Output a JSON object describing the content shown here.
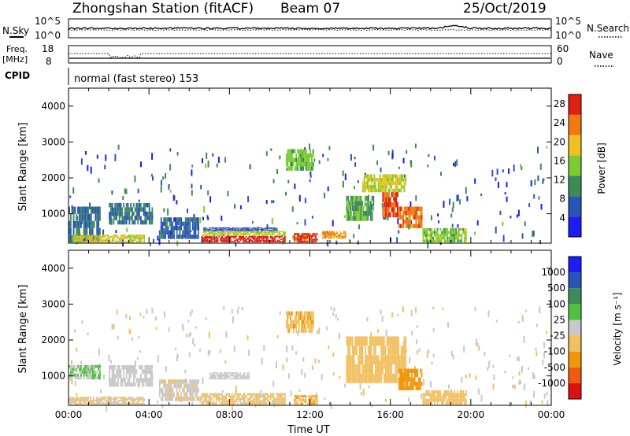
{
  "header": {
    "station": "Zhongshan Station (fitACF)",
    "beam": "Beam 07",
    "date": "25/Oct/2019"
  },
  "top_panels": {
    "nsky_label": "N.Sky",
    "nsearch_label": "N.Search",
    "freq_label_1": "Freq.",
    "freq_label_2": "[MHz]",
    "nave_label": "Nave",
    "cpid_label": "CPID",
    "cpid_text": "normal (fast stereo) 153",
    "noise_ticks_left": [
      "10^5",
      "10^0"
    ],
    "noise_ticks_right": [
      "10^5",
      "10^0"
    ],
    "freq_ticks": [
      "18",
      "8"
    ],
    "nave_ticks": [
      "60",
      "0"
    ]
  },
  "chart_data": [
    {
      "type": "heatmap",
      "title": "",
      "xlabel": "",
      "ylabel": "Slant Range [km]",
      "ylim": [
        180,
        4500
      ],
      "xlim": [
        0,
        24
      ],
      "y_ticks": [
        "1000",
        "2000",
        "3000",
        "4000"
      ],
      "colorbar": {
        "label": "Power [dB]",
        "ticks": [
          "4",
          "8",
          "12",
          "16",
          "20",
          "24",
          "28"
        ],
        "range": [
          0,
          30
        ],
        "colors": [
          "#1c1cf5",
          "#2a55b8",
          "#3d8a5a",
          "#7ccc30",
          "#f0c020",
          "#f07a10",
          "#e02010"
        ]
      },
      "regions": [
        {
          "t0": 6.6,
          "t1": 10.8,
          "r0": 200,
          "r1": 380,
          "level": 29
        },
        {
          "t0": 6.6,
          "t1": 10.8,
          "r0": 380,
          "r1": 520,
          "level": 17
        },
        {
          "t0": 6.7,
          "t1": 10.4,
          "r0": 520,
          "r1": 620,
          "level": 6
        },
        {
          "t0": 11.2,
          "t1": 12.4,
          "r0": 200,
          "r1": 460,
          "level": 27
        },
        {
          "t0": 12.6,
          "t1": 13.8,
          "r0": 300,
          "r1": 520,
          "level": 22
        },
        {
          "t0": 13.8,
          "t1": 15.2,
          "r0": 800,
          "r1": 1500,
          "level": 13
        },
        {
          "t0": 14.6,
          "t1": 16.8,
          "r0": 1600,
          "r1": 2100,
          "level": 18
        },
        {
          "t0": 15.6,
          "t1": 16.4,
          "r0": 900,
          "r1": 1600,
          "level": 26
        },
        {
          "t0": 16.4,
          "t1": 17.6,
          "r0": 600,
          "r1": 1200,
          "level": 24
        },
        {
          "t0": 17.6,
          "t1": 19.8,
          "r0": 200,
          "r1": 600,
          "level": 15
        },
        {
          "t0": 0.0,
          "t1": 1.6,
          "r0": 200,
          "r1": 1200,
          "level": 8
        },
        {
          "t0": 2.0,
          "t1": 4.2,
          "r0": 700,
          "r1": 1300,
          "level": 9
        },
        {
          "t0": 0.2,
          "t1": 3.8,
          "r0": 200,
          "r1": 420,
          "level": 18
        },
        {
          "t0": 10.8,
          "t1": 12.2,
          "r0": 2200,
          "r1": 2800,
          "level": 14
        },
        {
          "t0": 4.5,
          "t1": 6.5,
          "r0": 300,
          "r1": 900,
          "level": 7
        }
      ]
    },
    {
      "type": "heatmap",
      "title": "",
      "xlabel": "Time UT",
      "ylabel": "Slant Range [km]",
      "ylim": [
        180,
        4500
      ],
      "xlim": [
        0,
        24
      ],
      "x_ticks": [
        "00:00",
        "04:00",
        "08:00",
        "12:00",
        "16:00",
        "20:00",
        "00:00"
      ],
      "y_ticks": [
        "1000",
        "2000",
        "3000",
        "4000"
      ],
      "colorbar": {
        "label": "Velocity [m s⁻¹]",
        "ticks": [
          "1000",
          "500",
          "100",
          "25",
          "-25",
          "-100",
          "-500",
          "-1000"
        ],
        "range": [
          -1000,
          1000
        ],
        "colors": [
          "#e01010",
          "#f05a10",
          "#f0960a",
          "#f2c060",
          "#c8c8c8",
          "#50c040",
          "#3d8a5a",
          "#2a55b8",
          "#1c1cf5"
        ]
      },
      "regions": [
        {
          "t0": 6.6,
          "t1": 10.8,
          "r0": 200,
          "r1": 520,
          "level": -150
        },
        {
          "t0": 11.2,
          "t1": 12.4,
          "r0": 200,
          "r1": 460,
          "level": -300
        },
        {
          "t0": 13.8,
          "t1": 16.8,
          "r0": 800,
          "r1": 2100,
          "level": -200
        },
        {
          "t0": 16.4,
          "t1": 17.6,
          "r0": 600,
          "r1": 1200,
          "level": -400
        },
        {
          "t0": 17.6,
          "t1": 19.8,
          "r0": 200,
          "r1": 600,
          "level": -250
        },
        {
          "t0": 2.0,
          "t1": 4.2,
          "r0": 700,
          "r1": 1300,
          "level": 10
        },
        {
          "t0": 7.0,
          "t1": 9.0,
          "r0": 900,
          "r1": 1100,
          "level": 5
        },
        {
          "t0": 0.0,
          "t1": 3.8,
          "r0": 200,
          "r1": 420,
          "level": -120
        },
        {
          "t0": 10.8,
          "t1": 12.2,
          "r0": 2200,
          "r1": 2800,
          "level": -300
        },
        {
          "t0": 4.5,
          "t1": 6.5,
          "r0": 300,
          "r1": 900,
          "level": -80
        },
        {
          "t0": 0.0,
          "t1": 1.6,
          "r0": 900,
          "r1": 1300,
          "level": 120
        }
      ]
    }
  ]
}
